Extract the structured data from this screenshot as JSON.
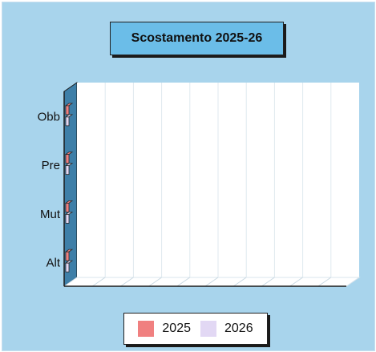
{
  "chart_data": {
    "type": "bar",
    "orientation": "horizontal",
    "three_d": true,
    "title": "Scostamento 2025-26",
    "categories": [
      "Obb",
      "Pre",
      "Mut",
      "Alt"
    ],
    "series": [
      {
        "name": "2025",
        "color": "#f08080",
        "values": [
          0,
          0,
          0,
          0
        ]
      },
      {
        "name": "2026",
        "color": "#e2d8f4",
        "values": [
          0,
          0,
          0,
          0
        ]
      }
    ],
    "xlim": [
      0,
      10
    ],
    "grid": true,
    "legend": "bottom"
  }
}
